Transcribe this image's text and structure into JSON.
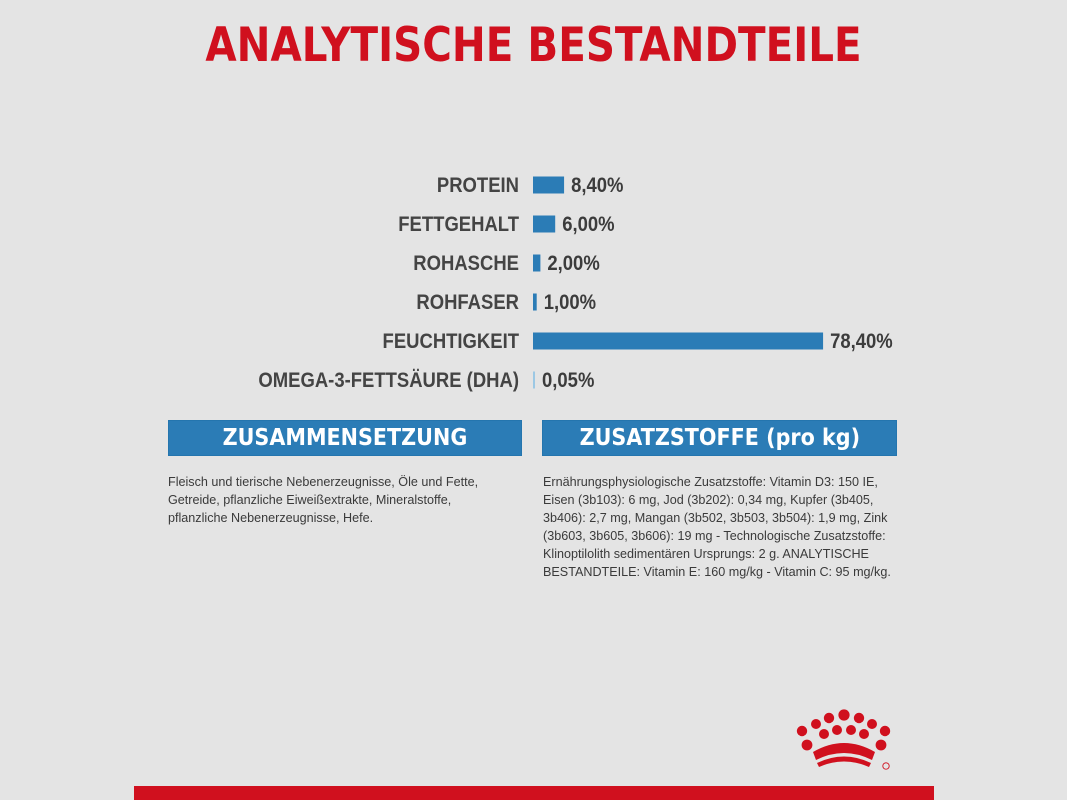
{
  "title": "ANALYTISCHE BESTANDTEILE",
  "chart_data": {
    "type": "bar",
    "orientation": "horizontal",
    "categories": [
      "PROTEIN",
      "FETTGEHALT",
      "ROHASCHE",
      "ROHFASER",
      "FEUCHTIGKEIT",
      "OMEGA-3-FETTSÄURE (DHA)"
    ],
    "values": [
      8.4,
      6.0,
      2.0,
      1.0,
      78.4,
      0.05
    ],
    "value_labels": [
      "8,40%",
      "6,00%",
      "2,00%",
      "1,00%",
      "78,40%",
      "0,05%"
    ],
    "unit": "%",
    "xlim": [
      0,
      100
    ],
    "title": "ANALYTISCHE BESTANDTEILE",
    "bar_color": "#2b7cb6",
    "grid": false,
    "legend": "none"
  },
  "composition": {
    "header": "ZUSAMMENSETZUNG",
    "text": "Fleisch und tierische Nebenerzeugnisse, Öle und Fette, Getreide, pflanzliche Eiweißextrakte, Mineralstoffe, pflanzliche Nebenerzeugnisse, Hefe."
  },
  "additives": {
    "header": "ZUSATZSTOFFE (pro kg)",
    "text": "Ernährungsphysiologische Zusatzstoffe: Vitamin D3: 150 IE, Eisen (3b103): 6 mg, Jod (3b202): 0,34 mg, Kupfer (3b405, 3b406): 2,7 mg, Mangan (3b502, 3b503, 3b504): 1,9 mg, Zink (3b603, 3b605, 3b606): 19 mg - Technologische Zusatzstoffe: Klinoptilolith sedimentären Ursprungs: 2 g. ANALYTISCHE BESTANDTEILE: Vitamin E: 160 mg/kg - Vitamin C: 95 mg/kg."
  },
  "colors": {
    "title": "#d0101e",
    "accent": "#2b7cb6",
    "background": "#e4e4e4",
    "brand_red": "#d0101e"
  },
  "logo": {
    "icon": "royal-canin-crown-icon"
  }
}
